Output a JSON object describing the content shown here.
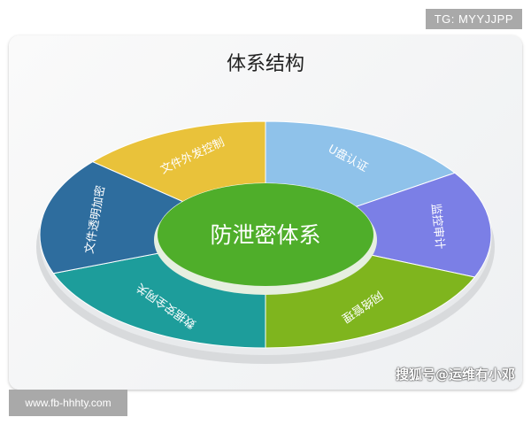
{
  "badge": "TG: MYYJJPP",
  "title": "体系结构",
  "center": {
    "label": "防泄密体系",
    "color": "#4fae2a"
  },
  "segments": [
    {
      "label": "文件外发控制",
      "color": "#e9c23a"
    },
    {
      "label": "U盘认证",
      "color": "#8fc2ea"
    },
    {
      "label": "监控审计",
      "color": "#7b7fe6"
    },
    {
      "label": "网络管理",
      "color": "#7fb51e"
    },
    {
      "label": "数据安全网关",
      "color": "#1d9d9b"
    },
    {
      "label": "文件透明加密",
      "color": "#2e6d9e"
    }
  ],
  "watermark": "搜狐号@运维有小邓",
  "footer_url": "www.fb-hhhty.com"
}
